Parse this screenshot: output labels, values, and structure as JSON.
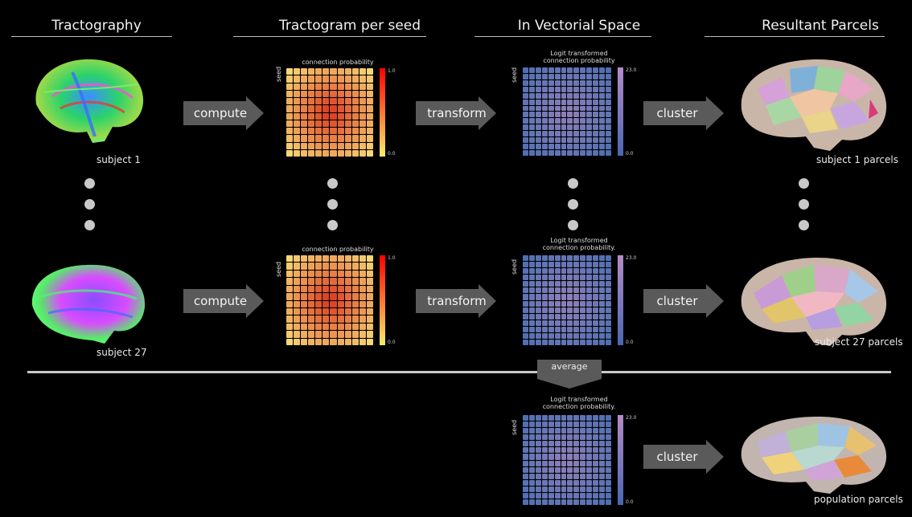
{
  "headers": {
    "tractography": "Tractography",
    "tractogram": "Tractogram per seed",
    "vectorial": "In Vectorial Space",
    "parcels": "Resultant Parcels"
  },
  "arrows": {
    "compute": "compute",
    "transform": "transform",
    "cluster": "cluster",
    "average": "average"
  },
  "subjects": {
    "s1": "subject 1",
    "s27": "subject 27",
    "p1": "subject 1 parcels",
    "p27": "subject 27 parcels",
    "pop": "population parcels"
  },
  "matrices": {
    "conn_title": "connection probability",
    "logit_title_a": "Logit transformed",
    "logit_title_b": "connection probability",
    "logit_title_b_dot": "connection probability.",
    "seed_label": "seed",
    "conn_max": "1.0",
    "conn_min": "0.0",
    "logit_max": "23.0",
    "logit_min": "0.0"
  },
  "colors": {
    "conn_hot": "#d9351f",
    "conn_cold": "#f7d878",
    "logit_base": "#4f6fb3",
    "logit_center": "#8f80b8"
  }
}
